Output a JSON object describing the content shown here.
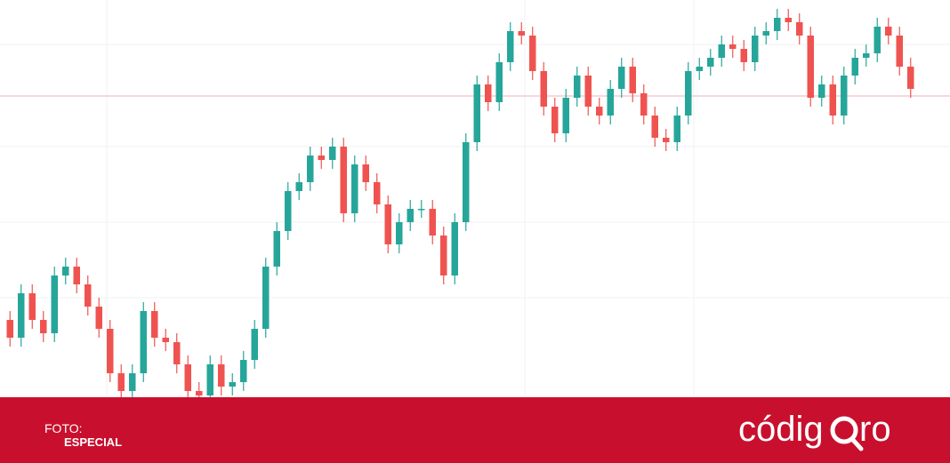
{
  "chart_data": {
    "type": "candlestick",
    "open": [
      28,
      24,
      34,
      28,
      25,
      38,
      40,
      36,
      31,
      26,
      16,
      12,
      16,
      30,
      24,
      23,
      18,
      12,
      11,
      18,
      13,
      14,
      19,
      26,
      40,
      48,
      57,
      59,
      65,
      64,
      67,
      52,
      63,
      59,
      54,
      45,
      50,
      53,
      53,
      47,
      38,
      50,
      68,
      81,
      77,
      86,
      93,
      92,
      84,
      76,
      70,
      78,
      83,
      76,
      74,
      80,
      85,
      79,
      74,
      69,
      68,
      74,
      84,
      85,
      87,
      90,
      89,
      86,
      92,
      93,
      96,
      95,
      92,
      78,
      81,
      74,
      83,
      87,
      88,
      94,
      92,
      85
    ],
    "high": [
      30,
      36,
      36,
      30,
      40,
      42,
      42,
      38,
      33,
      28,
      18,
      18,
      32,
      32,
      26,
      25,
      20,
      14,
      20,
      20,
      16,
      21,
      28,
      42,
      50,
      59,
      61,
      67,
      67,
      69,
      69,
      65,
      65,
      61,
      56,
      52,
      55,
      55,
      55,
      49,
      52,
      70,
      83,
      83,
      88,
      95,
      95,
      94,
      86,
      78,
      80,
      85,
      85,
      78,
      82,
      87,
      87,
      81,
      76,
      71,
      76,
      86,
      87,
      89,
      92,
      92,
      91,
      94,
      95,
      98,
      98,
      97,
      94,
      83,
      83,
      85,
      89,
      90,
      96,
      96,
      94,
      87
    ],
    "low": [
      22,
      22,
      26,
      23,
      23,
      36,
      34,
      29,
      24,
      14,
      10,
      10,
      14,
      22,
      21,
      16,
      10,
      9,
      9,
      11,
      11,
      12,
      17,
      24,
      38,
      46,
      55,
      57,
      62,
      62,
      50,
      50,
      57,
      52,
      43,
      43,
      48,
      51,
      45,
      36,
      36,
      48,
      66,
      75,
      75,
      84,
      90,
      82,
      74,
      68,
      68,
      76,
      74,
      72,
      72,
      78,
      77,
      72,
      67,
      66,
      66,
      72,
      82,
      83,
      85,
      87,
      84,
      84,
      90,
      91,
      93,
      90,
      76,
      76,
      72,
      72,
      81,
      85,
      86,
      90,
      83,
      78
    ],
    "close": [
      24,
      34,
      28,
      25,
      38,
      40,
      36,
      31,
      26,
      16,
      12,
      16,
      30,
      24,
      23,
      18,
      12,
      11,
      18,
      13,
      14,
      19,
      26,
      40,
      48,
      57,
      59,
      65,
      64,
      67,
      52,
      63,
      59,
      54,
      45,
      50,
      53,
      53,
      47,
      38,
      50,
      68,
      81,
      77,
      86,
      93,
      92,
      84,
      76,
      70,
      78,
      83,
      76,
      74,
      80,
      85,
      79,
      74,
      69,
      68,
      74,
      84,
      85,
      87,
      90,
      89,
      86,
      92,
      93,
      96,
      95,
      92,
      78,
      81,
      74,
      83,
      87,
      88,
      94,
      92,
      85,
      80
    ],
    "up_color": "#26a69a",
    "down_color": "#ef5350",
    "ylim": [
      0,
      100
    ]
  },
  "caption": {
    "credit_label": "FOTO:",
    "credit_name": "ESPECIAL",
    "logo_left": "códig",
    "logo_right": "ro"
  }
}
